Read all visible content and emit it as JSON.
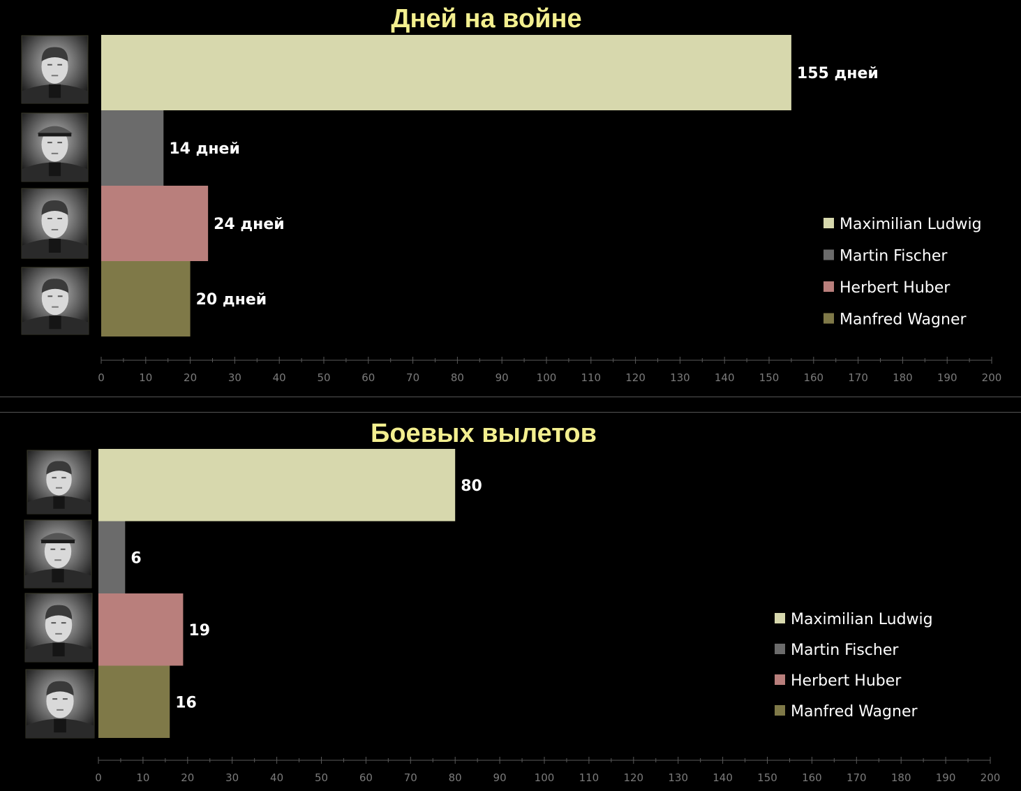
{
  "chart_data": [
    {
      "type": "bar",
      "orientation": "horizontal",
      "title": "Дней на войне",
      "categories": [
        "Maximilian Ludwig",
        "Martin Fischer",
        "Herbert Huber",
        "Manfred Wagner"
      ],
      "values": [
        155,
        14,
        24,
        20
      ],
      "data_labels": [
        "155 дней",
        "14 дней",
        "24 дней",
        "20 дней"
      ],
      "colors": [
        "#d7d8ad",
        "#6b6b6b",
        "#b97f7c",
        "#7f7948"
      ],
      "xlim": [
        0,
        200
      ],
      "x_ticks": [
        "0",
        "10",
        "20",
        "30",
        "40",
        "50",
        "60",
        "70",
        "80",
        "90",
        "100",
        "110",
        "120",
        "130",
        "140",
        "150",
        "160",
        "170",
        "180",
        "190",
        "200"
      ],
      "legend": "right",
      "grid": false
    },
    {
      "type": "bar",
      "orientation": "horizontal",
      "title": "Боевых вылетов",
      "categories": [
        "Maximilian Ludwig",
        "Martin Fischer",
        "Herbert Huber",
        "Manfred Wagner"
      ],
      "values": [
        80,
        6,
        19,
        16
      ],
      "data_labels": [
        "80",
        "6",
        "19",
        "16"
      ],
      "colors": [
        "#d7d8ad",
        "#6b6b6b",
        "#b97f7c",
        "#7f7948"
      ],
      "xlim": [
        0,
        200
      ],
      "x_ticks": [
        "0",
        "10",
        "20",
        "30",
        "40",
        "50",
        "60",
        "70",
        "80",
        "90",
        "100",
        "110",
        "120",
        "130",
        "140",
        "150",
        "160",
        "170",
        "180",
        "190",
        "200"
      ],
      "legend": "right",
      "grid": false
    }
  ],
  "icons": {
    "portraits": [
      "portrait-photo-icon",
      "portrait-photo-icon",
      "portrait-photo-icon",
      "portrait-photo-icon"
    ]
  }
}
